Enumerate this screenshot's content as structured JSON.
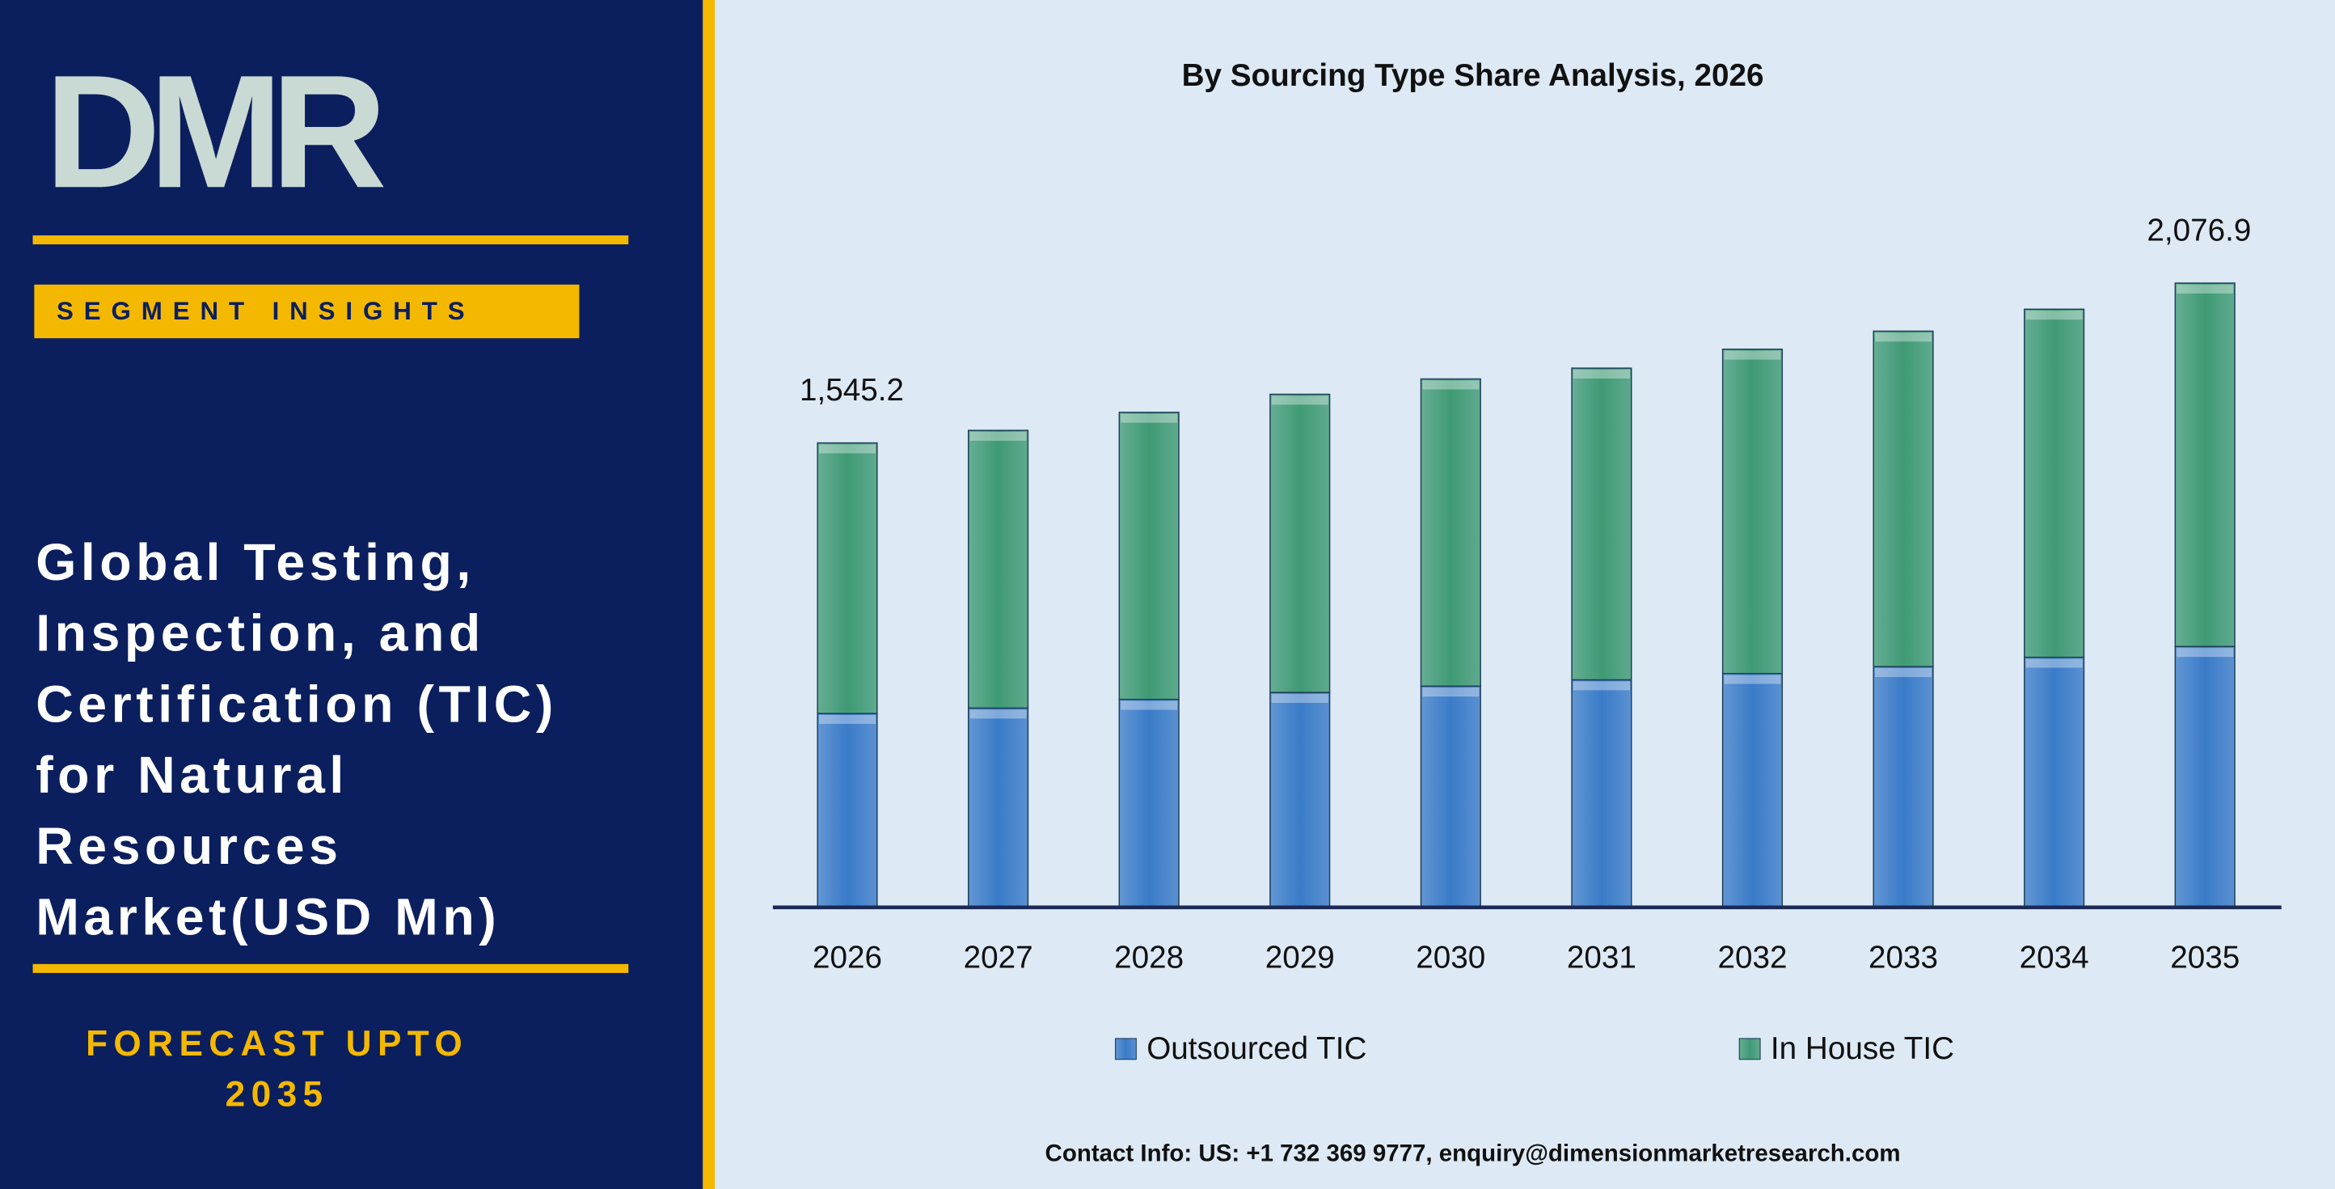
{
  "brand": {
    "logo": "DMR",
    "tag": "SEGMENT INSIGHTS",
    "title_lines": [
      "Global Testing,",
      "Inspection, and",
      "Certification (TIC)",
      "for Natural",
      "Resources",
      "Market(USD Mn)"
    ],
    "forecast_lines": [
      "FORECAST UPTO",
      "2035"
    ]
  },
  "contact": "Contact Info: US: +1 732 369 9777, enquiry@dimensionmarketresearch.com",
  "chart_data": {
    "type": "stacked_bar",
    "title": "By Sourcing Type Share Analysis, 2026",
    "categories": [
      "2026",
      "2027",
      "2028",
      "2029",
      "2030",
      "2031",
      "2032",
      "2033",
      "2034",
      "2035"
    ],
    "series": [
      {
        "name": "Outsourced TIC",
        "color": "#3a7bc8",
        "values": [
          645,
          663,
          692,
          715,
          736,
          757,
          778,
          801,
          832,
          868
        ]
      },
      {
        "name": "In House TIC",
        "color": "#3f9a74",
        "values": [
          900.2,
          924,
          955,
          992,
          1022,
          1037,
          1079,
          1116,
          1158,
          1208.9
        ]
      }
    ],
    "totals": [
      1545.2,
      null,
      null,
      null,
      null,
      null,
      null,
      null,
      null,
      2076.9
    ],
    "total_labels": [
      "1,545.2",
      null,
      null,
      null,
      null,
      null,
      null,
      null,
      null,
      "2,076.9"
    ],
    "legend": "bottom"
  }
}
